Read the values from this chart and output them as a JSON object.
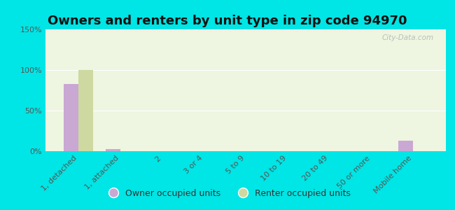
{
  "title": "Owners and renters by unit type in zip code 94970",
  "categories": [
    "1, detached",
    "1, attached",
    "2",
    "3 or 4",
    "5 to 9",
    "10 to 19",
    "20 to 49",
    "50 or more",
    "Mobile home"
  ],
  "owner_values": [
    83,
    3,
    0,
    0,
    0,
    0,
    0,
    0,
    13
  ],
  "renter_values": [
    100,
    0,
    0,
    0,
    0,
    0,
    0,
    0,
    0
  ],
  "owner_color": "#c9a8d4",
  "renter_color": "#cdd9a0",
  "background_color": "#00e5e5",
  "plot_bg_color": "#eef5e0",
  "ylim": [
    0,
    150
  ],
  "yticks": [
    0,
    50,
    100,
    150
  ],
  "ytick_labels": [
    "0%",
    "50%",
    "100%",
    "150%"
  ],
  "bar_width": 0.35,
  "legend_owner": "Owner occupied units",
  "legend_renter": "Renter occupied units",
  "watermark": "City-Data.com",
  "title_fontsize": 13,
  "tick_fontsize": 8
}
